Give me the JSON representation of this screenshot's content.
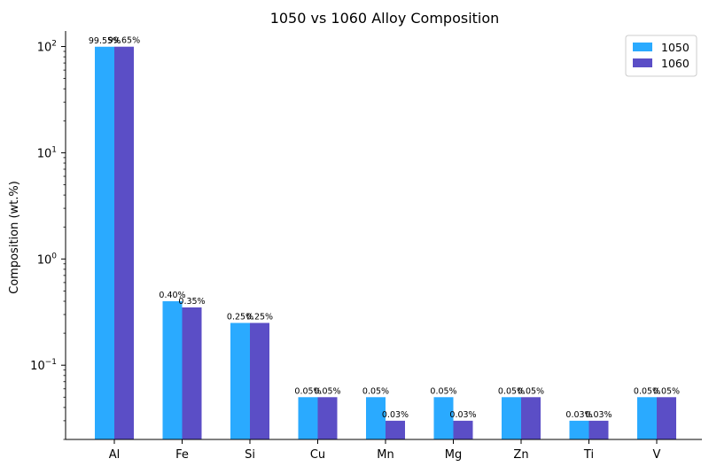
{
  "chart_data": {
    "type": "bar",
    "title": "1050 vs 1060 Alloy Composition",
    "xlabel": "",
    "ylabel": "Composition (wt.%)",
    "yscale": "log",
    "ylim": [
      0.02,
      140
    ],
    "yticks": [
      {
        "value": 0.1,
        "base": "10",
        "exp": "−1"
      },
      {
        "value": 1,
        "base": "10",
        "exp": "0"
      },
      {
        "value": 10,
        "base": "10",
        "exp": "1"
      },
      {
        "value": 100,
        "base": "10",
        "exp": "2"
      }
    ],
    "categories": [
      "Al",
      "Fe",
      "Si",
      "Cu",
      "Mn",
      "Mg",
      "Zn",
      "Ti",
      "V"
    ],
    "series": [
      {
        "name": "1050",
        "color": "#2aaaff",
        "values": [
          99.55,
          0.4,
          0.25,
          0.05,
          0.05,
          0.05,
          0.05,
          0.03,
          0.05
        ],
        "labels": [
          "99.55%",
          "0.40%",
          "0.25%",
          "0.05%",
          "0.05%",
          "0.05%",
          "0.05%",
          "0.03%",
          "0.05%"
        ]
      },
      {
        "name": "1060",
        "color": "#5b4ec6",
        "values": [
          99.65,
          0.35,
          0.25,
          0.05,
          0.03,
          0.03,
          0.05,
          0.03,
          0.05
        ],
        "labels": [
          "99.65%",
          "0.35%",
          "0.25%",
          "0.05%",
          "0.03%",
          "0.03%",
          "0.05%",
          "0.03%",
          "0.05%"
        ]
      }
    ],
    "grid": false,
    "legend_position": "top-right"
  }
}
